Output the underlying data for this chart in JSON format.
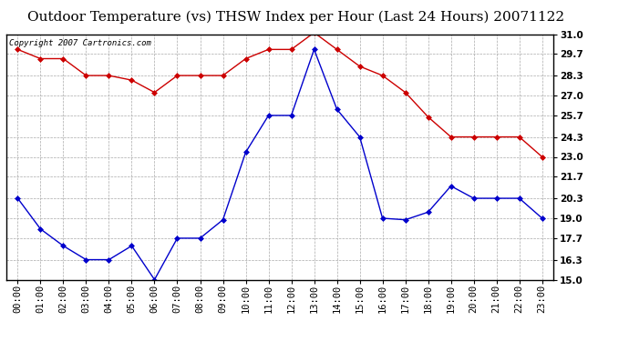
{
  "title": "Outdoor Temperature (vs) THSW Index per Hour (Last 24 Hours) 20071122",
  "copyright": "Copyright 2007 Cartronics.com",
  "hours": [
    "00:00",
    "01:00",
    "02:00",
    "03:00",
    "04:00",
    "05:00",
    "06:00",
    "07:00",
    "08:00",
    "09:00",
    "10:00",
    "11:00",
    "12:00",
    "13:00",
    "14:00",
    "15:00",
    "16:00",
    "17:00",
    "18:00",
    "19:00",
    "20:00",
    "21:00",
    "22:00",
    "23:00"
  ],
  "temp_red": [
    30.0,
    29.4,
    29.4,
    28.3,
    28.3,
    28.0,
    27.2,
    28.3,
    28.3,
    28.3,
    29.4,
    30.0,
    30.0,
    31.1,
    30.0,
    28.9,
    28.3,
    27.2,
    25.6,
    24.3,
    24.3,
    24.3,
    24.3,
    23.0
  ],
  "thsw_blue": [
    20.3,
    18.3,
    17.2,
    16.3,
    16.3,
    17.2,
    15.0,
    17.7,
    17.7,
    18.9,
    23.3,
    25.7,
    25.7,
    30.0,
    26.1,
    24.3,
    19.0,
    18.9,
    19.4,
    21.1,
    20.3,
    20.3,
    20.3,
    19.0
  ],
  "red_color": "#cc0000",
  "blue_color": "#0000cc",
  "bg_color": "#ffffff",
  "grid_color": "#aaaaaa",
  "ylim_min": 15.0,
  "ylim_max": 31.0,
  "yticks": [
    15.0,
    16.3,
    17.7,
    19.0,
    20.3,
    21.7,
    23.0,
    24.3,
    25.7,
    27.0,
    28.3,
    29.7,
    31.0
  ],
  "ytick_labels": [
    "15.0",
    "16.3",
    "17.7",
    "19.0",
    "20.3",
    "21.7",
    "23.0",
    "24.3",
    "25.7",
    "27.0",
    "28.3",
    "29.7",
    "31.0"
  ],
  "title_fontsize": 11,
  "copyright_fontsize": 6.5,
  "axis_label_fontsize": 7.5,
  "marker": "D",
  "markersize": 3.0,
  "linewidth": 1.0
}
